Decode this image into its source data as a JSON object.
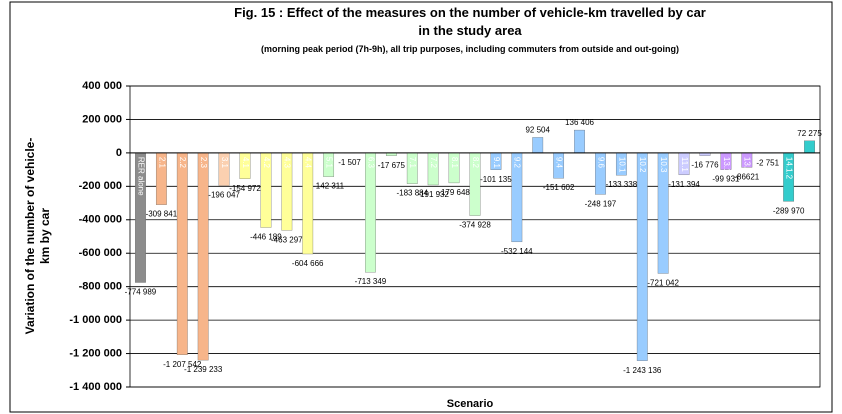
{
  "chart_data": {
    "type": "bar",
    "title": [
      "Fig. 15 : Effect of the measures on the number of vehicle-km travelled by car",
      "in the study area"
    ],
    "subtitle": "(morning peak period (7h-9h), all trip purposes, including commuters from outside and out-going)",
    "y_label": [
      "Variation of the number of  vehicle-",
      "km by car"
    ],
    "x_label": "Scenario",
    "categories": [
      "RER alone",
      "2.1",
      "2.2",
      "2.3",
      "3.1",
      "4.1",
      "4.2",
      "4.3",
      "4.4",
      "5.1",
      "6.2",
      "6.3",
      "6.4",
      "7.1",
      "7.2",
      "8.1",
      "8.2",
      "9.1",
      "9.2",
      "9.3",
      "9.4",
      "9.5",
      "9.6",
      "10.1",
      "10.2",
      "10.3",
      "11.1",
      "12.1",
      "13.1",
      "13.2",
      "14.1.1",
      "14.1.2",
      "14.2"
    ],
    "values": [
      -774989,
      -309841,
      -1207542,
      -1239233,
      -196047,
      -154972,
      -446189,
      -463297,
      -604666,
      -142311,
      -1507,
      -713349,
      -17675,
      -183884,
      -191932,
      -179648,
      -374928,
      -101135,
      -532144,
      92504,
      -151602,
      136406,
      -248197,
      -133338,
      -1243136,
      -721042,
      -131394,
      -16776,
      -99931,
      -86621,
      -2751,
      -289970,
      72275
    ],
    "value_labels": [
      "-774 989",
      "-309 841",
      "-1 207 542",
      "-1 239 233",
      "-196 047",
      "-154 972",
      "-446 189",
      "-463 297",
      "-604 666",
      "-142 311",
      "-1 507",
      "-713 349",
      "-17 675",
      "-183 884",
      "-191 932",
      "-179 648",
      "-374 928",
      "-101 135",
      "-532 144",
      "92 504",
      "-151 602",
      "136 406",
      "-248 197",
      "-133 338",
      "-1 243 136",
      "-721 042",
      "-131 394",
      "-16 776",
      "-99 931",
      "-86621",
      "-2 751",
      "-289 970",
      "72 275"
    ],
    "colors": [
      "#8c8c8c",
      "#f7b58a",
      "#f7b58a",
      "#f7b58a",
      "#fbd0b0",
      "#ffff99",
      "#ffff99",
      "#ffff99",
      "#ffff99",
      "#ccffcc",
      "#ccffcc",
      "#ccffcc",
      "#ccffcc",
      "#ccffcc",
      "#ccffcc",
      "#ccffcc",
      "#ccffcc",
      "#99ccff",
      "#99ccff",
      "#99ccff",
      "#99ccff",
      "#99ccff",
      "#99ccff",
      "#99ccff",
      "#99ccff",
      "#99ccff",
      "#ccccff",
      "#ccccff",
      "#cc99ff",
      "#cc99ff",
      "#33cccc",
      "#33cccc",
      "#33cccc"
    ],
    "ylim": [
      -1400000,
      400000
    ],
    "yticks": [
      {
        "value": 400000,
        "label": "400 000"
      },
      {
        "value": 200000,
        "label": "200 000"
      },
      0,
      {
        "value": -200000,
        "label": "-200 000"
      },
      {
        "value": -400000,
        "label": "-400 000"
      },
      {
        "value": -600000,
        "label": "-600 000"
      },
      {
        "value": -800000,
        "label": "-800 000"
      },
      {
        "value": -1000000,
        "label": "-1 000 000"
      },
      {
        "value": -1200000,
        "label": "-1 200 000"
      },
      {
        "value": -1400000,
        "label": "-1 400 000"
      }
    ],
    "grid": true
  }
}
